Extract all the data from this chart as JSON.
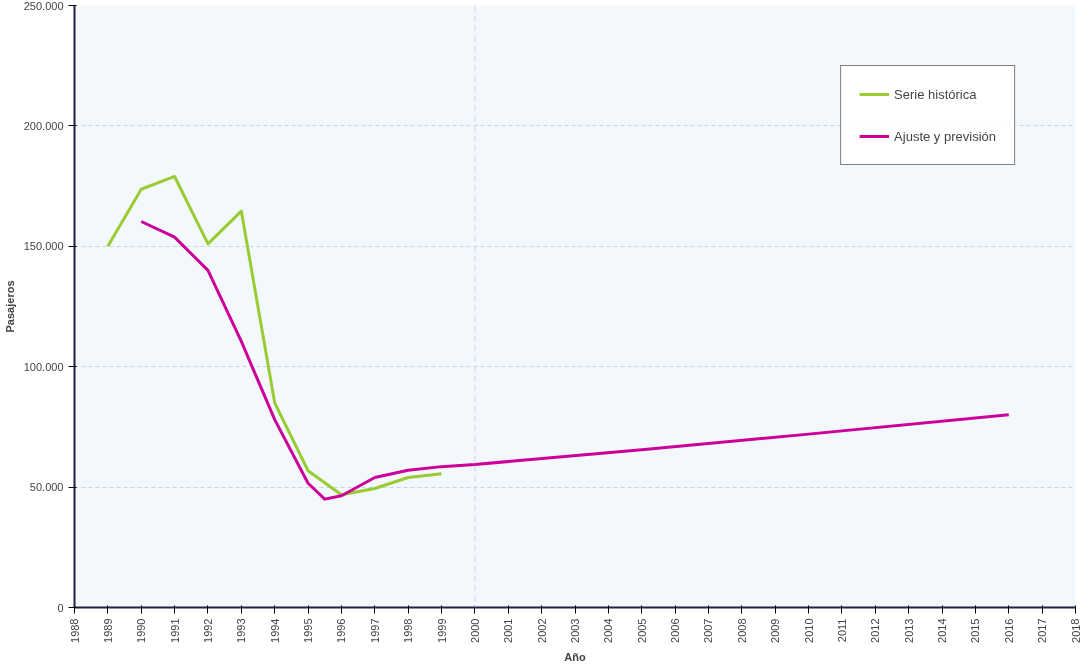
{
  "chart_data": {
    "type": "line",
    "xlabel": "Año",
    "ylabel": "Pasajeros",
    "xlim": [
      1988,
      2018
    ],
    "xticks": [
      1988,
      1989,
      1990,
      1991,
      1992,
      1993,
      1994,
      1995,
      1996,
      1997,
      1998,
      1999,
      2000,
      2001,
      2002,
      2003,
      2004,
      2005,
      2006,
      2007,
      2008,
      2009,
      2010,
      2011,
      2012,
      2013,
      2014,
      2015,
      2016,
      2017,
      2018
    ],
    "ylim": [
      0,
      250000
    ],
    "yticks": [
      {
        "value": 0,
        "label": "0"
      },
      {
        "value": 50000,
        "label": "50.000"
      },
      {
        "value": 100000,
        "label": "100.000"
      },
      {
        "value": 150000,
        "label": "150.000"
      },
      {
        "value": 200000,
        "label": "200.000"
      },
      {
        "value": 250000,
        "label": "250.000"
      }
    ],
    "grid": "y",
    "legend": "top right",
    "marker": "none",
    "line_style": "solid",
    "ref_lines": [
      {
        "axis": "x",
        "value": 2000,
        "color": "#e6c8e6",
        "line_style": "dashed"
      }
    ],
    "series": [
      {
        "name": "Serie histórica",
        "color": "#99cc33",
        "x": [
          1989,
          1990,
          1991,
          1992,
          1993,
          1994,
          1995,
          1996,
          1997,
          1998,
          1999
        ],
        "values": [
          150000,
          173700,
          179000,
          151000,
          164600,
          85000,
          56800,
          46800,
          49400,
          54000,
          55500
        ]
      },
      {
        "name": "Ajuste y previsión",
        "color": "#cc0099",
        "x": [
          1990,
          1991,
          1992,
          1993,
          1994,
          1995,
          1995.5,
          1996,
          1997,
          1998,
          1999,
          2000,
          2005,
          2010,
          2016
        ],
        "values": [
          160300,
          153800,
          140000,
          110500,
          78000,
          51600,
          45000,
          46400,
          54000,
          57000,
          58500,
          59400,
          65500,
          72000,
          80000
        ]
      }
    ]
  }
}
